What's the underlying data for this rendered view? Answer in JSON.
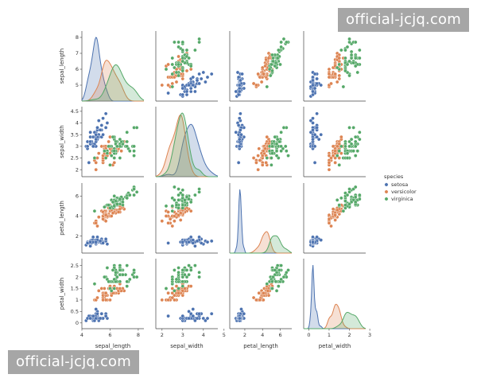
{
  "watermarks": {
    "top": "official-jcjq.com",
    "bottom": "official-jcjq.com"
  },
  "chart_data": {
    "type": "scatter",
    "title": "",
    "variables": [
      "sepal_length",
      "sepal_width",
      "petal_length",
      "petal_width"
    ],
    "ranges": {
      "sepal_length": [
        4.0,
        8.4
      ],
      "sepal_width": [
        1.7,
        4.7
      ],
      "petal_length": [
        0.3,
        7.3
      ],
      "petal_width": [
        -0.25,
        2.8
      ]
    },
    "ticks": {
      "sepal_length": [
        4,
        6,
        8
      ],
      "sepal_width": [
        2,
        3,
        4,
        5
      ],
      "petal_length": [
        2,
        4,
        6
      ],
      "petal_width": [
        0,
        1,
        2,
        3
      ]
    },
    "y_ticks": {
      "sepal_length": [
        5,
        6,
        7,
        8
      ],
      "sepal_width": [
        2.0,
        2.5,
        3.0,
        3.5,
        4.0,
        4.5
      ],
      "petal_length": [
        2,
        4,
        6
      ],
      "petal_width": [
        0.0,
        0.5,
        1.0,
        1.5,
        2.0,
        2.5
      ]
    },
    "legend": {
      "title": "species",
      "placement": "right",
      "entries": [
        "setosa",
        "versicolor",
        "virginica"
      ]
    },
    "colors": {
      "setosa": "#4c72b0",
      "versicolor": "#dd8452",
      "virginica": "#55a868"
    },
    "diagonal": "kde",
    "grid": false,
    "series": [
      {
        "name": "setosa",
        "points": [
          [
            5.1,
            3.5,
            1.4,
            0.2
          ],
          [
            4.9,
            3.0,
            1.4,
            0.2
          ],
          [
            4.7,
            3.2,
            1.3,
            0.2
          ],
          [
            4.6,
            3.1,
            1.5,
            0.2
          ],
          [
            5.0,
            3.6,
            1.4,
            0.2
          ],
          [
            5.4,
            3.9,
            1.7,
            0.4
          ],
          [
            4.6,
            3.4,
            1.4,
            0.3
          ],
          [
            5.0,
            3.4,
            1.5,
            0.2
          ],
          [
            4.4,
            2.9,
            1.4,
            0.2
          ],
          [
            4.9,
            3.1,
            1.5,
            0.1
          ],
          [
            5.4,
            3.7,
            1.5,
            0.2
          ],
          [
            4.8,
            3.4,
            1.6,
            0.2
          ],
          [
            4.8,
            3.0,
            1.4,
            0.1
          ],
          [
            4.3,
            3.0,
            1.1,
            0.1
          ],
          [
            5.8,
            4.0,
            1.2,
            0.2
          ],
          [
            5.7,
            4.4,
            1.5,
            0.4
          ],
          [
            5.4,
            3.9,
            1.3,
            0.4
          ],
          [
            5.1,
            3.5,
            1.4,
            0.3
          ],
          [
            5.7,
            3.8,
            1.7,
            0.3
          ],
          [
            5.1,
            3.8,
            1.5,
            0.3
          ],
          [
            5.4,
            3.4,
            1.7,
            0.2
          ],
          [
            5.1,
            3.7,
            1.5,
            0.4
          ],
          [
            4.6,
            3.6,
            1.0,
            0.2
          ],
          [
            5.1,
            3.3,
            1.7,
            0.5
          ],
          [
            4.8,
            3.4,
            1.9,
            0.2
          ],
          [
            5.0,
            3.0,
            1.6,
            0.2
          ],
          [
            5.0,
            3.4,
            1.6,
            0.4
          ],
          [
            5.2,
            3.5,
            1.5,
            0.2
          ],
          [
            5.2,
            3.4,
            1.4,
            0.2
          ],
          [
            4.7,
            3.2,
            1.6,
            0.2
          ],
          [
            4.8,
            3.1,
            1.6,
            0.2
          ],
          [
            5.4,
            3.4,
            1.5,
            0.4
          ],
          [
            5.2,
            4.1,
            1.5,
            0.1
          ],
          [
            5.5,
            4.2,
            1.4,
            0.2
          ],
          [
            4.9,
            3.1,
            1.5,
            0.2
          ],
          [
            5.0,
            3.2,
            1.2,
            0.2
          ],
          [
            5.5,
            3.5,
            1.3,
            0.2
          ],
          [
            4.9,
            3.6,
            1.4,
            0.1
          ],
          [
            4.4,
            3.0,
            1.3,
            0.2
          ],
          [
            5.1,
            3.4,
            1.5,
            0.2
          ],
          [
            5.0,
            3.5,
            1.3,
            0.3
          ],
          [
            4.5,
            2.3,
            1.3,
            0.3
          ],
          [
            4.4,
            3.2,
            1.3,
            0.2
          ],
          [
            5.0,
            3.5,
            1.6,
            0.6
          ],
          [
            5.1,
            3.8,
            1.9,
            0.4
          ],
          [
            4.8,
            3.0,
            1.4,
            0.3
          ],
          [
            5.1,
            3.8,
            1.6,
            0.2
          ],
          [
            4.6,
            3.2,
            1.4,
            0.2
          ],
          [
            5.3,
            3.7,
            1.5,
            0.2
          ],
          [
            5.0,
            3.3,
            1.4,
            0.2
          ]
        ]
      },
      {
        "name": "versicolor",
        "points": [
          [
            7.0,
            3.2,
            4.7,
            1.4
          ],
          [
            6.4,
            3.2,
            4.5,
            1.5
          ],
          [
            6.9,
            3.1,
            4.9,
            1.5
          ],
          [
            5.5,
            2.3,
            4.0,
            1.3
          ],
          [
            6.5,
            2.8,
            4.6,
            1.5
          ],
          [
            5.7,
            2.8,
            4.5,
            1.3
          ],
          [
            6.3,
            3.3,
            4.7,
            1.6
          ],
          [
            4.9,
            2.4,
            3.3,
            1.0
          ],
          [
            6.6,
            2.9,
            4.6,
            1.3
          ],
          [
            5.2,
            2.7,
            3.9,
            1.4
          ],
          [
            5.0,
            2.0,
            3.5,
            1.0
          ],
          [
            5.9,
            3.0,
            4.2,
            1.5
          ],
          [
            6.0,
            2.2,
            4.0,
            1.0
          ],
          [
            6.1,
            2.9,
            4.7,
            1.4
          ],
          [
            5.6,
            2.9,
            3.6,
            1.3
          ],
          [
            6.7,
            3.1,
            4.4,
            1.4
          ],
          [
            5.6,
            3.0,
            4.5,
            1.5
          ],
          [
            5.8,
            2.7,
            4.1,
            1.0
          ],
          [
            6.2,
            2.2,
            4.5,
            1.5
          ],
          [
            5.6,
            2.5,
            3.9,
            1.1
          ],
          [
            5.9,
            3.2,
            4.8,
            1.8
          ],
          [
            6.1,
            2.8,
            4.0,
            1.3
          ],
          [
            6.3,
            2.5,
            4.9,
            1.5
          ],
          [
            6.1,
            2.8,
            4.7,
            1.2
          ],
          [
            6.4,
            2.9,
            4.3,
            1.3
          ],
          [
            6.6,
            3.0,
            4.4,
            1.4
          ],
          [
            6.8,
            2.8,
            4.8,
            1.4
          ],
          [
            6.7,
            3.0,
            5.0,
            1.7
          ],
          [
            6.0,
            2.9,
            4.5,
            1.5
          ],
          [
            5.7,
            2.6,
            3.5,
            1.0
          ],
          [
            5.5,
            2.4,
            3.8,
            1.1
          ],
          [
            5.5,
            2.4,
            3.7,
            1.0
          ],
          [
            5.8,
            2.7,
            3.9,
            1.2
          ],
          [
            6.0,
            2.7,
            5.1,
            1.6
          ],
          [
            5.4,
            3.0,
            4.5,
            1.5
          ],
          [
            6.0,
            3.4,
            4.5,
            1.6
          ],
          [
            6.7,
            3.1,
            4.7,
            1.5
          ],
          [
            6.3,
            2.3,
            4.4,
            1.3
          ],
          [
            5.6,
            3.0,
            4.1,
            1.3
          ],
          [
            5.5,
            2.5,
            4.0,
            1.3
          ],
          [
            5.5,
            2.6,
            4.4,
            1.2
          ],
          [
            6.1,
            3.0,
            4.6,
            1.4
          ],
          [
            5.8,
            2.6,
            4.0,
            1.2
          ],
          [
            5.0,
            2.3,
            3.3,
            1.0
          ],
          [
            5.6,
            2.7,
            4.2,
            1.3
          ],
          [
            5.7,
            3.0,
            4.2,
            1.2
          ],
          [
            5.7,
            2.9,
            4.2,
            1.3
          ],
          [
            6.2,
            2.9,
            4.3,
            1.3
          ],
          [
            5.1,
            2.5,
            3.0,
            1.1
          ],
          [
            5.7,
            2.8,
            4.1,
            1.3
          ]
        ]
      },
      {
        "name": "virginica",
        "points": [
          [
            6.3,
            3.3,
            6.0,
            2.5
          ],
          [
            5.8,
            2.7,
            5.1,
            1.9
          ],
          [
            7.1,
            3.0,
            5.9,
            2.1
          ],
          [
            6.3,
            2.9,
            5.6,
            1.8
          ],
          [
            6.5,
            3.0,
            5.8,
            2.2
          ],
          [
            7.6,
            3.0,
            6.6,
            2.1
          ],
          [
            4.9,
            2.5,
            4.5,
            1.7
          ],
          [
            7.3,
            2.9,
            6.3,
            1.8
          ],
          [
            6.7,
            2.5,
            5.8,
            1.8
          ],
          [
            7.2,
            3.6,
            6.1,
            2.5
          ],
          [
            6.5,
            3.2,
            5.1,
            2.0
          ],
          [
            6.4,
            2.7,
            5.3,
            1.9
          ],
          [
            6.8,
            3.0,
            5.5,
            2.1
          ],
          [
            5.7,
            2.5,
            5.0,
            2.0
          ],
          [
            5.8,
            2.8,
            5.1,
            2.4
          ],
          [
            6.4,
            3.2,
            5.3,
            2.3
          ],
          [
            6.5,
            3.0,
            5.5,
            1.8
          ],
          [
            7.7,
            3.8,
            6.7,
            2.2
          ],
          [
            7.7,
            2.6,
            6.9,
            2.3
          ],
          [
            6.0,
            2.2,
            5.0,
            1.5
          ],
          [
            6.9,
            3.2,
            5.7,
            2.3
          ],
          [
            5.6,
            2.8,
            4.9,
            2.0
          ],
          [
            7.7,
            2.8,
            6.7,
            2.0
          ],
          [
            6.3,
            2.7,
            4.9,
            1.8
          ],
          [
            6.7,
            3.3,
            5.7,
            2.1
          ],
          [
            7.2,
            3.2,
            6.0,
            1.8
          ],
          [
            6.2,
            2.8,
            4.8,
            1.8
          ],
          [
            6.1,
            3.0,
            4.9,
            1.8
          ],
          [
            6.4,
            2.8,
            5.6,
            2.1
          ],
          [
            7.2,
            3.0,
            5.8,
            1.6
          ],
          [
            7.4,
            2.8,
            6.1,
            1.9
          ],
          [
            7.9,
            3.8,
            6.4,
            2.0
          ],
          [
            6.4,
            2.8,
            5.6,
            2.2
          ],
          [
            6.3,
            2.8,
            5.1,
            1.5
          ],
          [
            6.1,
            2.6,
            5.6,
            1.4
          ],
          [
            7.7,
            3.0,
            6.1,
            2.3
          ],
          [
            6.3,
            3.4,
            5.6,
            2.4
          ],
          [
            6.4,
            3.1,
            5.5,
            1.8
          ],
          [
            6.0,
            3.0,
            4.8,
            1.8
          ],
          [
            6.9,
            3.1,
            5.4,
            2.1
          ],
          [
            6.7,
            3.1,
            5.6,
            2.4
          ],
          [
            6.9,
            3.1,
            5.1,
            2.3
          ],
          [
            5.8,
            2.7,
            5.1,
            1.9
          ],
          [
            6.8,
            3.2,
            5.9,
            2.3
          ],
          [
            6.7,
            3.3,
            5.7,
            2.5
          ],
          [
            6.7,
            3.0,
            5.2,
            2.3
          ],
          [
            6.3,
            2.5,
            5.0,
            1.9
          ],
          [
            6.5,
            3.0,
            5.2,
            2.0
          ],
          [
            6.2,
            3.4,
            5.4,
            2.3
          ],
          [
            5.9,
            3.0,
            5.1,
            1.8
          ]
        ]
      }
    ]
  }
}
